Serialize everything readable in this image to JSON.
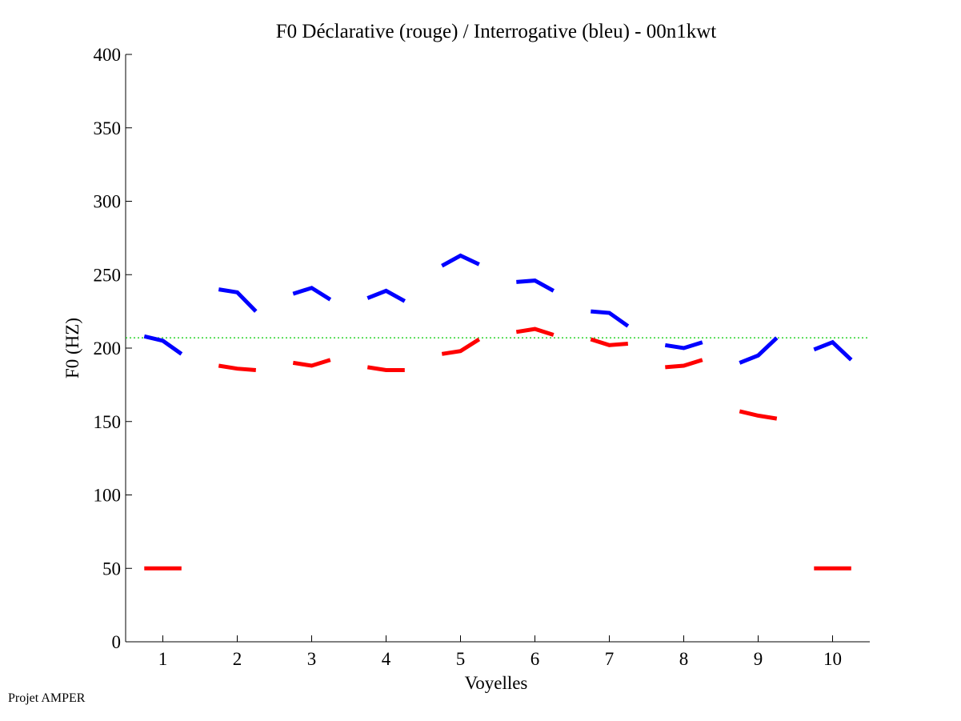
{
  "footer": {
    "label": "Projet AMPER"
  },
  "chart_data": {
    "type": "line",
    "title": "F0 Déclarative (rouge) / Interrogative (bleu) - 00n1kwt",
    "xlabel": "Voyelles",
    "ylabel": "F0 (HZ)",
    "xlim": [
      0.5,
      10.5
    ],
    "ylim": [
      0,
      400
    ],
    "xticks": [
      1,
      2,
      3,
      4,
      5,
      6,
      7,
      8,
      9,
      10
    ],
    "yticks": [
      0,
      50,
      100,
      150,
      200,
      250,
      300,
      350,
      400
    ],
    "grid": false,
    "reference_line": {
      "y": 207,
      "color": "#00cc00",
      "style": "dotted"
    },
    "colors": {
      "declarative": "#ff0000",
      "interrogative": "#0000ff"
    },
    "series": [
      {
        "key": "declarative",
        "color": "#ff0000",
        "segments": [
          {
            "x": [
              0.75,
              1.0,
              1.25
            ],
            "y": [
              50,
              50,
              50
            ]
          },
          {
            "x": [
              1.75,
              2.0,
              2.25
            ],
            "y": [
              188,
              186,
              185
            ]
          },
          {
            "x": [
              2.75,
              3.0,
              3.25
            ],
            "y": [
              190,
              188,
              192
            ]
          },
          {
            "x": [
              3.75,
              4.0,
              4.25
            ],
            "y": [
              187,
              185,
              185
            ]
          },
          {
            "x": [
              4.75,
              5.0,
              5.25
            ],
            "y": [
              196,
              198,
              206
            ]
          },
          {
            "x": [
              5.75,
              6.0,
              6.25
            ],
            "y": [
              211,
              213,
              209
            ]
          },
          {
            "x": [
              6.75,
              7.0,
              7.25
            ],
            "y": [
              206,
              202,
              203
            ]
          },
          {
            "x": [
              7.75,
              8.0,
              8.25
            ],
            "y": [
              187,
              188,
              192
            ]
          },
          {
            "x": [
              8.75,
              9.0,
              9.25
            ],
            "y": [
              157,
              154,
              152
            ]
          },
          {
            "x": [
              9.75,
              10.0,
              10.25
            ],
            "y": [
              50,
              50,
              50
            ]
          }
        ]
      },
      {
        "key": "interrogative",
        "color": "#0000ff",
        "segments": [
          {
            "x": [
              0.75,
              1.0,
              1.25
            ],
            "y": [
              208,
              205,
              196
            ]
          },
          {
            "x": [
              1.75,
              2.0,
              2.25
            ],
            "y": [
              240,
              238,
              225
            ]
          },
          {
            "x": [
              2.75,
              3.0,
              3.25
            ],
            "y": [
              237,
              241,
              233
            ]
          },
          {
            "x": [
              3.75,
              4.0,
              4.25
            ],
            "y": [
              234,
              239,
              232
            ]
          },
          {
            "x": [
              4.75,
              5.0,
              5.25
            ],
            "y": [
              256,
              263,
              257
            ]
          },
          {
            "x": [
              5.75,
              6.0,
              6.25
            ],
            "y": [
              245,
              246,
              239
            ]
          },
          {
            "x": [
              6.75,
              7.0,
              7.25
            ],
            "y": [
              225,
              224,
              215
            ]
          },
          {
            "x": [
              7.75,
              8.0,
              8.25
            ],
            "y": [
              202,
              200,
              204
            ]
          },
          {
            "x": [
              8.75,
              9.0,
              9.25
            ],
            "y": [
              190,
              195,
              207
            ]
          },
          {
            "x": [
              9.75,
              10.0,
              10.25
            ],
            "y": [
              199,
              204,
              192
            ]
          }
        ]
      }
    ]
  }
}
